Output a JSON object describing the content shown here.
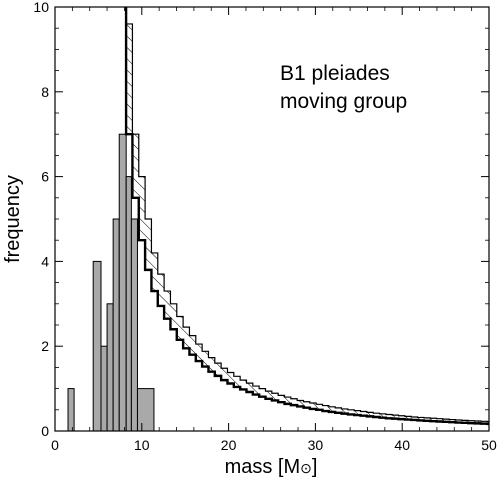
{
  "chart_data": {
    "type": "bar",
    "xlabel": "mass [M",
    "xlabel_symbol": "⊙",
    "xlabel_close": "]",
    "ylabel": "frequency",
    "xlim": [
      0,
      50
    ],
    "ylim": [
      0,
      10
    ],
    "xticks": [
      0,
      10,
      20,
      30,
      40,
      50
    ],
    "yticks": [
      0,
      2,
      4,
      6,
      8,
      10
    ],
    "annotation": [
      "B1 pleiades",
      "moving group"
    ],
    "grid": false,
    "histogram": {
      "bin_width": 0.73,
      "bars": [
        {
          "x0": 1.5,
          "x1": 2.2,
          "value": 1
        },
        {
          "x0": 4.4,
          "x1": 5.3,
          "value": 4
        },
        {
          "x0": 5.3,
          "x1": 6.0,
          "value": 2
        },
        {
          "x0": 6.0,
          "x1": 6.7,
          "value": 3
        },
        {
          "x0": 6.7,
          "x1": 7.4,
          "value": 5
        },
        {
          "x0": 7.4,
          "x1": 8.2,
          "value": 7
        },
        {
          "x0": 8.2,
          "x1": 8.8,
          "value": 6
        },
        {
          "x0": 8.8,
          "x1": 9.5,
          "value": 5
        },
        {
          "x0": 9.5,
          "x1": 11.4,
          "value": 1
        }
      ]
    },
    "model_band": {
      "x0": 6.0,
      "step": 0.73,
      "lower": [
        11.0,
        11.0,
        11.0,
        7.0,
        5.5,
        4.5,
        3.8,
        3.3,
        2.95,
        2.65,
        2.4,
        2.15,
        1.95,
        1.8,
        1.65,
        1.52,
        1.4,
        1.3,
        1.2,
        1.12,
        1.04,
        0.98,
        0.92,
        0.86,
        0.81,
        0.76,
        0.72,
        0.68,
        0.64,
        0.61,
        0.58,
        0.55,
        0.52,
        0.5,
        0.47,
        0.45,
        0.43,
        0.41,
        0.39,
        0.375,
        0.36,
        0.345,
        0.33,
        0.315,
        0.3,
        0.29,
        0.28,
        0.27,
        0.26,
        0.25,
        0.24,
        0.232,
        0.224,
        0.216,
        0.208,
        0.2,
        0.193,
        0.186,
        0.18,
        0.174,
        0.168,
        0.163,
        0.158,
        0.153
      ],
      "upper": [
        11.0,
        11.0,
        11.0,
        9.6,
        7.0,
        6.0,
        5.0,
        4.2,
        3.7,
        3.3,
        3.0,
        2.7,
        2.45,
        2.25,
        2.05,
        1.88,
        1.73,
        1.6,
        1.48,
        1.38,
        1.29,
        1.2,
        1.13,
        1.06,
        1.0,
        0.94,
        0.89,
        0.84,
        0.8,
        0.76,
        0.72,
        0.69,
        0.66,
        0.63,
        0.6,
        0.57,
        0.545,
        0.52,
        0.5,
        0.48,
        0.46,
        0.44,
        0.42,
        0.405,
        0.39,
        0.375,
        0.36,
        0.345,
        0.33,
        0.32,
        0.31,
        0.3,
        0.29,
        0.28,
        0.27,
        0.26,
        0.25,
        0.243,
        0.236,
        0.229,
        0.222,
        0.215,
        0.21,
        0.205
      ]
    }
  }
}
